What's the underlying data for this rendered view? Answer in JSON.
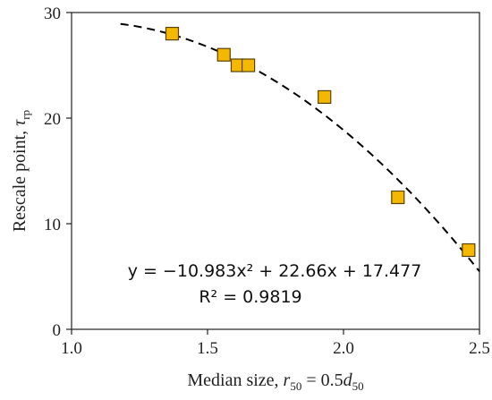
{
  "chart_data": {
    "type": "scatter",
    "title": "",
    "xlabel": {
      "text": "Median size, ",
      "var": "r",
      "sub": "50",
      "eq": " = 0.5",
      "var2": "d",
      "sub2": "50"
    },
    "ylabel": {
      "text": "Rescale point, ",
      "var": "τ",
      "sub": "rp"
    },
    "xlim": [
      1.0,
      2.5
    ],
    "ylim": [
      0,
      30
    ],
    "xticks": [
      "1.0",
      "1.5",
      "2.0",
      "2.5"
    ],
    "yticks": [
      "0",
      "10",
      "20",
      "30"
    ],
    "grid": false,
    "legend": "none",
    "series": [
      {
        "x": [
          1.37,
          1.56,
          1.61,
          1.65,
          1.93,
          2.2,
          2.46
        ],
        "y": [
          28.0,
          26.0,
          25.0,
          25.0,
          22.0,
          12.5,
          7.5
        ],
        "marker": "square",
        "color": "#F5B800"
      }
    ],
    "trendline": {
      "type": "polynomial",
      "coefficients": {
        "a": -10.983,
        "b": 22.66,
        "c": 17.477
      },
      "x_range": [
        1.18,
        2.5
      ],
      "style": "dashed",
      "color": "#000000"
    },
    "annotations": {
      "equation": "y = −10.983x² + 22.66x + 17.477",
      "r2": "R² = 0.9819"
    }
  }
}
